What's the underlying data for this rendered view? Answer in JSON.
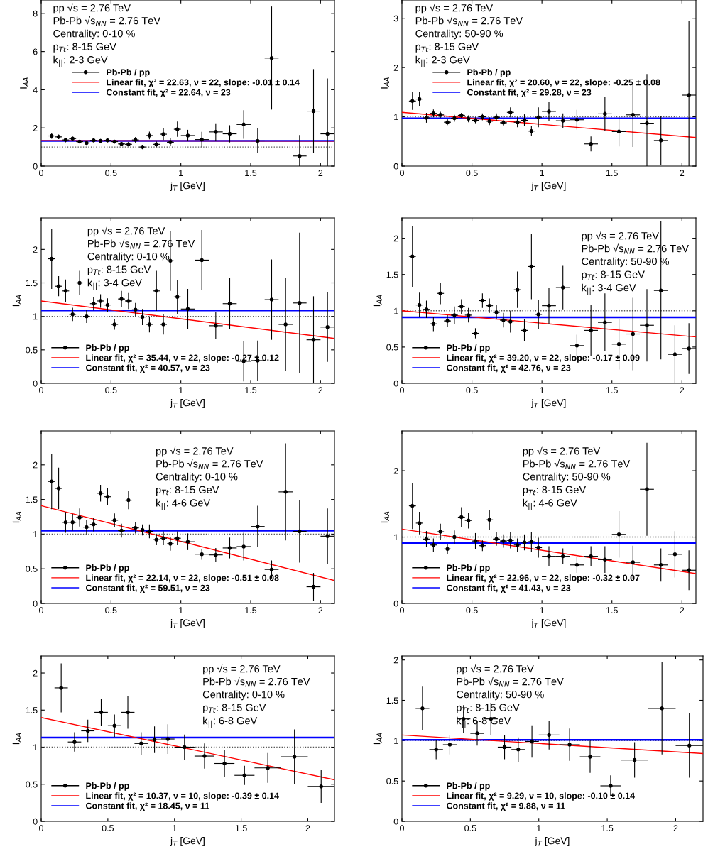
{
  "chart_data": [
    {
      "type": "scatter",
      "xlabel": "j$_{T}$ [GeV]",
      "ylabel": "I$_{AA}$",
      "xlim": [
        0,
        2.1
      ],
      "ylim": [
        0,
        8.7
      ],
      "xticks": [
        0,
        0.5,
        1,
        1.5,
        2
      ],
      "yticks": [
        0,
        2,
        4,
        6,
        8
      ],
      "legend": "center left",
      "annotations": [
        "pp √s = 2.76 TeV",
        "Pb-Pb √s$_{NN}$ = 2.76 TeV",
        "Centrality: 0-10 %",
        "p$_{Tt}$: 8-15 GeV",
        "k$_{||}$: 2-3 GeV"
      ],
      "ref_lines": [
        {
          "axis": "y",
          "value": 1,
          "color": "#555555",
          "line_style": "dotted"
        }
      ],
      "series": [
        {
          "name": "Linear fit, χ² = 22.63, ν = 22, slope: -0.01 ± 0.14",
          "type": "line",
          "color": "#ff0000",
          "x": [
            0,
            2.1
          ],
          "values": [
            1.33,
            1.31
          ]
        },
        {
          "name": "Constant fit, χ² = 22.64, ν = 23",
          "type": "line",
          "color": "#0000ff",
          "x": [
            0,
            2.1
          ],
          "values": [
            1.32,
            1.32
          ]
        },
        {
          "name": "Pb-Pb / pp",
          "marker": "circle",
          "color": "#000000",
          "x": [
            0.075,
            0.125,
            0.175,
            0.225,
            0.275,
            0.325,
            0.375,
            0.425,
            0.475,
            0.525,
            0.575,
            0.625,
            0.675,
            0.725,
            0.775,
            0.825,
            0.875,
            0.925,
            0.975,
            1.05,
            1.15,
            1.25,
            1.35,
            1.45,
            1.55,
            1.65,
            1.85,
            1.95,
            2.05
          ],
          "values": [
            1.58,
            1.53,
            1.37,
            1.44,
            1.28,
            1.21,
            1.35,
            1.32,
            1.35,
            1.28,
            1.16,
            1.14,
            1.37,
            1.0,
            1.6,
            1.14,
            1.67,
            1.25,
            1.93,
            1.6,
            1.39,
            1.79,
            1.69,
            2.18,
            1.32,
            5.66,
            0.53,
            2.88,
            1.69
          ],
          "errors": [
            0.15,
            0.12,
            0.12,
            0.1,
            0.08,
            0.08,
            0.1,
            0.1,
            0.1,
            0.1,
            0.1,
            0.12,
            0.15,
            0.12,
            0.2,
            0.15,
            0.3,
            0.2,
            0.4,
            0.3,
            0.4,
            0.45,
            0.45,
            0.75,
            0.65,
            2.7,
            1.1,
            2.2,
            2.9
          ],
          "xerrors": [
            0.025,
            0.025,
            0.025,
            0.025,
            0.025,
            0.025,
            0.025,
            0.025,
            0.025,
            0.025,
            0.025,
            0.025,
            0.025,
            0.025,
            0.025,
            0.025,
            0.025,
            0.025,
            0.025,
            0.05,
            0.05,
            0.05,
            0.05,
            0.05,
            0.05,
            0.05,
            0.05,
            0.05,
            0.05
          ]
        }
      ]
    },
    {
      "type": "scatter",
      "xlabel": "j$_{T}$ [GeV]",
      "ylabel": "I$_{AA}$",
      "xlim": [
        0,
        2.1
      ],
      "ylim": [
        0,
        3.37
      ],
      "xticks": [
        0,
        0.5,
        1,
        1.5,
        2
      ],
      "yticks": [
        0,
        1,
        2,
        3
      ],
      "legend": "center left",
      "annotations": [
        "pp √s = 2.76 TeV",
        "Pb-Pb √s$_{NN}$ = 2.76 TeV",
        "Centrality: 50-90 %",
        "p$_{Tt}$: 8-15 GeV",
        "k$_{||}$: 2-3 GeV"
      ],
      "ref_lines": [
        {
          "axis": "y",
          "value": 1,
          "color": "#555555",
          "line_style": "dotted"
        }
      ],
      "series": [
        {
          "name": "Linear fit, χ² = 20.60, ν = 22, slope: -0.25 ± 0.08",
          "type": "line",
          "color": "#ff0000",
          "x": [
            0,
            2.1
          ],
          "values": [
            1.09,
            0.58
          ]
        },
        {
          "name": "Constant fit, χ² = 29.28, ν = 23",
          "type": "line",
          "color": "#0000ff",
          "x": [
            0,
            2.1
          ],
          "values": [
            0.97,
            0.97
          ]
        },
        {
          "name": "Pb-Pb / pp",
          "marker": "circle",
          "color": "#000000",
          "x": [
            0.075,
            0.125,
            0.175,
            0.225,
            0.275,
            0.325,
            0.375,
            0.425,
            0.475,
            0.525,
            0.575,
            0.625,
            0.675,
            0.725,
            0.775,
            0.825,
            0.875,
            0.925,
            0.975,
            1.05,
            1.15,
            1.25,
            1.35,
            1.45,
            1.55,
            1.65,
            1.75,
            1.85,
            2.05
          ],
          "values": [
            1.32,
            1.36,
            0.98,
            1.07,
            1.04,
            0.89,
            0.97,
            1.03,
            0.96,
            0.93,
            1.0,
            0.91,
            0.99,
            0.88,
            1.09,
            0.89,
            0.93,
            0.71,
            0.99,
            1.11,
            0.92,
            0.94,
            0.45,
            1.06,
            0.7,
            1.04,
            0.87,
            0.52,
            1.44
          ],
          "errors": [
            0.18,
            0.15,
            0.1,
            0.08,
            0.06,
            0.06,
            0.07,
            0.05,
            0.07,
            0.06,
            0.07,
            0.08,
            0.08,
            0.06,
            0.1,
            0.1,
            0.12,
            0.1,
            0.2,
            0.2,
            0.15,
            0.2,
            0.15,
            0.35,
            0.3,
            0.65,
            1.0,
            0.5,
            1.5
          ],
          "xerrors": [
            0.025,
            0.025,
            0.025,
            0.025,
            0.025,
            0.025,
            0.025,
            0.025,
            0.025,
            0.025,
            0.025,
            0.025,
            0.025,
            0.025,
            0.025,
            0.025,
            0.025,
            0.025,
            0.025,
            0.05,
            0.05,
            0.05,
            0.05,
            0.05,
            0.05,
            0.05,
            0.05,
            0.05,
            0.05
          ]
        }
      ]
    },
    {
      "type": "scatter",
      "xlabel": "j$_{T}$ [GeV]",
      "ylabel": "I$_{AA}$",
      "xlim": [
        0,
        2.1
      ],
      "ylim": [
        0,
        2.47
      ],
      "xticks": [
        0,
        0.5,
        1,
        1.5,
        2
      ],
      "yticks": [
        0,
        0.5,
        1,
        1.5,
        2
      ],
      "legend": "lower left",
      "annotations": [
        "pp √s = 2.76 TeV",
        "Pb-Pb √s$_{NN}$ = 2.76 TeV",
        "Centrality: 0-10 %",
        "p$_{Tt}$: 8-15 GeV",
        "k$_{||}$: 3-4 GeV"
      ],
      "ref_lines": [
        {
          "axis": "y",
          "value": 1,
          "color": "#555555",
          "line_style": "dotted"
        }
      ],
      "series": [
        {
          "name": "Linear fit, χ² = 35.44, ν = 22, slope: -0.27 ± 0.12",
          "type": "line",
          "color": "#ff0000",
          "x": [
            0,
            2.1
          ],
          "values": [
            1.23,
            0.67
          ]
        },
        {
          "name": "Constant fit, χ² = 40.57, ν = 23",
          "type": "line",
          "color": "#0000ff",
          "x": [
            0,
            2.1
          ],
          "values": [
            1.09,
            1.09
          ]
        },
        {
          "name": "Pb-Pb / pp",
          "marker": "circle",
          "color": "#000000",
          "x": [
            0.075,
            0.125,
            0.175,
            0.225,
            0.275,
            0.325,
            0.375,
            0.425,
            0.475,
            0.525,
            0.575,
            0.625,
            0.675,
            0.725,
            0.775,
            0.825,
            0.875,
            0.925,
            0.975,
            1.05,
            1.15,
            1.25,
            1.35,
            1.45,
            1.55,
            1.65,
            1.75,
            1.85,
            1.95,
            2.05
          ],
          "values": [
            1.86,
            1.45,
            1.38,
            1.03,
            1.5,
            1.0,
            1.19,
            1.23,
            1.17,
            0.88,
            1.26,
            1.23,
            1.1,
            0.99,
            0.88,
            1.38,
            0.88,
            1.83,
            1.29,
            1.11,
            1.84,
            0.86,
            1.19,
            0.33,
            0.34,
            1.25,
            0.88,
            1.2,
            0.65,
            0.84
          ],
          "errors": [
            0.45,
            0.15,
            0.17,
            0.1,
            0.18,
            0.1,
            0.1,
            0.1,
            0.1,
            0.08,
            0.12,
            0.12,
            0.1,
            0.12,
            0.12,
            0.3,
            0.15,
            0.45,
            0.25,
            0.3,
            0.45,
            0.2,
            0.38,
            0.3,
            0.3,
            0.6,
            0.7,
            1.05,
            0.65,
            0.52
          ],
          "xerrors": [
            0.025,
            0.025,
            0.025,
            0.025,
            0.025,
            0.025,
            0.025,
            0.025,
            0.025,
            0.025,
            0.025,
            0.025,
            0.025,
            0.025,
            0.025,
            0.025,
            0.025,
            0.025,
            0.025,
            0.05,
            0.05,
            0.05,
            0.05,
            0.05,
            0.05,
            0.05,
            0.05,
            0.05,
            0.05,
            0.05
          ]
        }
      ]
    },
    {
      "type": "scatter",
      "xlabel": "j$_{T}$ [GeV]",
      "ylabel": "I$_{AA}$",
      "xlim": [
        0,
        2.1
      ],
      "ylim": [
        0,
        2.28
      ],
      "xticks": [
        0,
        0.5,
        1,
        1.5,
        2
      ],
      "yticks": [
        0,
        0.5,
        1,
        1.5,
        2
      ],
      "legend": "lower left",
      "annotations": [
        "pp √s = 2.76 TeV",
        "Pb-Pb √s$_{NN}$ = 2.76 TeV",
        "Centrality: 50-90 %",
        "p$_{Tt}$: 8-15 GeV",
        "k$_{||}$: 3-4 GeV"
      ],
      "ref_lines": [
        {
          "axis": "y",
          "value": 1,
          "color": "#555555",
          "line_style": "dotted"
        }
      ],
      "series": [
        {
          "name": "Linear fit, χ² = 39.20, ν = 22, slope: -0.17 ± 0.09",
          "type": "line",
          "color": "#ff0000",
          "x": [
            0,
            2.1
          ],
          "values": [
            1.0,
            0.64
          ]
        },
        {
          "name": "Constant fit, χ² = 42.76, ν = 23",
          "type": "line",
          "color": "#0000ff",
          "x": [
            0,
            2.1
          ],
          "values": [
            0.91,
            0.91
          ]
        },
        {
          "name": "Pb-Pb / pp",
          "marker": "circle",
          "color": "#000000",
          "x": [
            0.075,
            0.125,
            0.175,
            0.225,
            0.275,
            0.325,
            0.375,
            0.425,
            0.475,
            0.525,
            0.575,
            0.625,
            0.675,
            0.725,
            0.775,
            0.825,
            0.875,
            0.925,
            0.975,
            1.05,
            1.15,
            1.25,
            1.35,
            1.45,
            1.55,
            1.65,
            1.75,
            1.85,
            1.95,
            2.05
          ],
          "values": [
            1.75,
            1.08,
            1.02,
            0.82,
            1.24,
            0.86,
            0.94,
            1.06,
            0.94,
            0.69,
            1.14,
            1.07,
            0.98,
            0.87,
            0.85,
            1.29,
            0.73,
            1.61,
            0.95,
            1.07,
            1.32,
            0.52,
            0.73,
            0.84,
            0.54,
            0.68,
            0.8,
            1.28,
            0.4,
            0.48
          ],
          "errors": [
            0.42,
            0.17,
            0.12,
            0.1,
            0.15,
            0.08,
            0.12,
            0.1,
            0.1,
            0.07,
            0.1,
            0.1,
            0.1,
            0.1,
            0.15,
            0.25,
            0.15,
            0.45,
            0.2,
            0.25,
            0.3,
            0.15,
            0.35,
            0.4,
            0.35,
            0.5,
            0.5,
            0.95,
            0.4,
            0.35
          ],
          "xerrors": [
            0.025,
            0.025,
            0.025,
            0.025,
            0.025,
            0.025,
            0.025,
            0.025,
            0.025,
            0.025,
            0.025,
            0.025,
            0.025,
            0.025,
            0.025,
            0.025,
            0.025,
            0.025,
            0.025,
            0.05,
            0.05,
            0.05,
            0.05,
            0.05,
            0.05,
            0.05,
            0.05,
            0.05,
            0.05,
            0.05
          ]
        }
      ]
    },
    {
      "type": "scatter",
      "xlabel": "j$_{T}$ [GeV]",
      "ylabel": "I$_{AA}$",
      "xlim": [
        0,
        2.1
      ],
      "ylim": [
        0,
        2.49
      ],
      "xticks": [
        0,
        0.5,
        1,
        1.5,
        2
      ],
      "yticks": [
        0,
        0.5,
        1,
        1.5,
        2
      ],
      "legend": "lower left",
      "annotations": [
        "pp √s = 2.76 TeV",
        "Pb-Pb √s$_{NN}$ = 2.76 TeV",
        "Centrality: 0-10 %",
        "p$_{Tt}$: 8-15 GeV",
        "k$_{||}$: 4-6 GeV"
      ],
      "ref_lines": [
        {
          "axis": "y",
          "value": 1,
          "color": "#555555",
          "line_style": "dotted"
        }
      ],
      "series": [
        {
          "name": "Linear fit, χ² = 22.14, ν = 22, slope: -0.51 ± 0.08",
          "type": "line",
          "color": "#ff0000",
          "x": [
            0,
            2.1
          ],
          "values": [
            1.41,
            0.33
          ]
        },
        {
          "name": "Constant fit, χ² = 59.51, ν = 23",
          "type": "line",
          "color": "#0000ff",
          "x": [
            0,
            2.1
          ],
          "values": [
            1.05,
            1.05
          ]
        },
        {
          "name": "Pb-Pb / pp",
          "marker": "circle",
          "color": "#000000",
          "x": [
            0.075,
            0.125,
            0.175,
            0.225,
            0.275,
            0.325,
            0.375,
            0.425,
            0.475,
            0.525,
            0.575,
            0.625,
            0.675,
            0.725,
            0.775,
            0.825,
            0.875,
            0.925,
            0.975,
            1.05,
            1.15,
            1.25,
            1.35,
            1.45,
            1.55,
            1.65,
            1.75,
            1.85,
            1.95,
            2.05
          ],
          "values": [
            1.76,
            1.66,
            1.17,
            1.17,
            1.24,
            1.1,
            1.14,
            1.59,
            1.54,
            1.2,
            1.05,
            1.49,
            1.09,
            1.06,
            1.04,
            0.92,
            0.94,
            0.86,
            0.94,
            0.89,
            0.71,
            0.7,
            0.8,
            0.82,
            1.11,
            0.49,
            1.61,
            1.04,
            0.24,
            0.97
          ],
          "errors": [
            0.4,
            0.3,
            0.15,
            0.12,
            0.13,
            0.1,
            0.1,
            0.12,
            0.12,
            0.1,
            0.1,
            0.13,
            0.08,
            0.08,
            0.1,
            0.08,
            0.1,
            0.1,
            0.1,
            0.12,
            0.08,
            0.1,
            0.15,
            0.2,
            0.3,
            0.13,
            0.7,
            0.45,
            0.2,
            0.4
          ],
          "xerrors": [
            0.025,
            0.025,
            0.025,
            0.025,
            0.025,
            0.025,
            0.025,
            0.025,
            0.025,
            0.025,
            0.025,
            0.025,
            0.025,
            0.025,
            0.025,
            0.025,
            0.025,
            0.025,
            0.025,
            0.05,
            0.05,
            0.05,
            0.05,
            0.05,
            0.05,
            0.05,
            0.05,
            0.05,
            0.05,
            0.05
          ]
        }
      ]
    },
    {
      "type": "scatter",
      "xlabel": "j$_{T}$ [GeV]",
      "ylabel": "I$_{AA}$",
      "xlim": [
        0,
        2.1
      ],
      "ylim": [
        0,
        2.6
      ],
      "xticks": [
        0,
        0.5,
        1,
        1.5,
        2
      ],
      "yticks": [
        0,
        1,
        2
      ],
      "legend": "lower left",
      "annotations": [
        "pp √s = 2.76 TeV",
        "Pb-Pb √s$_{NN}$ = 2.76 TeV",
        "Centrality: 50-90 %",
        "p$_{Tt}$: 8-15 GeV",
        "k$_{||}$: 4-6 GeV"
      ],
      "ref_lines": [
        {
          "axis": "y",
          "value": 1,
          "color": "#555555",
          "line_style": "dotted"
        }
      ],
      "series": [
        {
          "name": "Linear fit, χ² = 22.96, ν = 22, slope: -0.32 ± 0.07",
          "type": "line",
          "color": "#ff0000",
          "x": [
            0,
            2.1
          ],
          "values": [
            1.12,
            0.45
          ]
        },
        {
          "name": "Constant fit, χ² = 41.43, ν = 23",
          "type": "line",
          "color": "#0000ff",
          "x": [
            0,
            2.1
          ],
          "values": [
            0.91,
            0.91
          ]
        },
        {
          "name": "Pb-Pb / pp",
          "marker": "circle",
          "color": "#000000",
          "x": [
            0.075,
            0.125,
            0.175,
            0.225,
            0.275,
            0.325,
            0.375,
            0.425,
            0.475,
            0.525,
            0.575,
            0.625,
            0.675,
            0.725,
            0.775,
            0.825,
            0.875,
            0.925,
            0.975,
            1.05,
            1.15,
            1.25,
            1.35,
            1.45,
            1.55,
            1.65,
            1.75,
            1.85,
            1.95,
            2.05
          ],
          "values": [
            1.47,
            1.21,
            0.97,
            0.88,
            1.08,
            0.82,
            1.0,
            1.3,
            1.25,
            0.94,
            0.87,
            1.26,
            0.97,
            0.94,
            0.95,
            0.88,
            0.92,
            0.93,
            0.84,
            0.71,
            0.71,
            0.58,
            0.71,
            0.66,
            1.04,
            0.62,
            1.72,
            0.58,
            0.74,
            0.5
          ],
          "errors": [
            0.35,
            0.17,
            0.12,
            0.1,
            0.12,
            0.08,
            0.1,
            0.15,
            0.12,
            0.12,
            0.08,
            0.15,
            0.1,
            0.1,
            0.12,
            0.1,
            0.12,
            0.15,
            0.15,
            0.15,
            0.12,
            0.12,
            0.15,
            0.2,
            0.35,
            0.25,
            0.7,
            0.25,
            0.35,
            0.3
          ],
          "xerrors": [
            0.025,
            0.025,
            0.025,
            0.025,
            0.025,
            0.025,
            0.025,
            0.025,
            0.025,
            0.025,
            0.025,
            0.025,
            0.025,
            0.025,
            0.025,
            0.025,
            0.025,
            0.025,
            0.025,
            0.05,
            0.05,
            0.05,
            0.05,
            0.05,
            0.05,
            0.05,
            0.05,
            0.05,
            0.05,
            0.05
          ]
        }
      ]
    },
    {
      "type": "scatter",
      "xlabel": "j$_{T}$ [GeV]",
      "ylabel": "I$_{AA}$",
      "xlim": [
        0,
        2.2
      ],
      "ylim": [
        0,
        2.23
      ],
      "xticks": [
        0,
        0.5,
        1,
        1.5,
        2
      ],
      "yticks": [
        0,
        0.5,
        1,
        1.5,
        2
      ],
      "legend": "lower left",
      "annotations": [
        "pp √s = 2.76 TeV",
        "Pb-Pb √s$_{NN}$ = 2.76 TeV",
        "Centrality: 0-10 %",
        "p$_{Tt}$: 8-15 GeV",
        "k$_{||}$: 6-8 GeV"
      ],
      "ref_lines": [
        {
          "axis": "y",
          "value": 1,
          "color": "#555555",
          "line_style": "dotted"
        }
      ],
      "series": [
        {
          "name": "Linear fit, χ² = 10.37, ν = 10, slope: -0.39 ± 0.14",
          "type": "line",
          "color": "#ff0000",
          "x": [
            0,
            2.2
          ],
          "values": [
            1.4,
            0.56
          ]
        },
        {
          "name": "Constant fit, χ² = 18.45, ν = 11",
          "type": "line",
          "color": "#0000ff",
          "x": [
            0,
            2.2
          ],
          "values": [
            1.13,
            1.13
          ]
        },
        {
          "name": "Pb-Pb / pp",
          "marker": "circle",
          "color": "#000000",
          "x": [
            0.15,
            0.25,
            0.35,
            0.45,
            0.55,
            0.65,
            0.75,
            0.85,
            0.95,
            1.075,
            1.225,
            1.375,
            1.525,
            1.7,
            1.9,
            2.1
          ],
          "values": [
            1.8,
            1.07,
            1.22,
            1.47,
            1.29,
            1.47,
            1.05,
            1.1,
            1.11,
            1.0,
            0.88,
            0.78,
            0.62,
            0.72,
            0.87,
            0.47
          ],
          "errors": [
            0.33,
            0.13,
            0.15,
            0.18,
            0.15,
            0.22,
            0.15,
            0.18,
            0.2,
            0.17,
            0.17,
            0.18,
            0.13,
            0.2,
            0.37,
            0.22
          ],
          "xerrors": [
            0.05,
            0.05,
            0.05,
            0.05,
            0.05,
            0.05,
            0.05,
            0.05,
            0.05,
            0.075,
            0.075,
            0.075,
            0.075,
            0.1,
            0.1,
            0.1
          ]
        }
      ]
    },
    {
      "type": "scatter",
      "xlabel": "j$_{T}$ [GeV]",
      "ylabel": "I$_{AA}$",
      "xlim": [
        0,
        2.2
      ],
      "ylim": [
        0,
        2.05
      ],
      "xticks": [
        0,
        0.5,
        1,
        1.5,
        2
      ],
      "yticks": [
        0,
        0.5,
        1,
        1.5,
        2
      ],
      "legend": "lower left",
      "annotations": [
        "pp √s = 2.76 TeV",
        "Pb-Pb √s$_{NN}$ = 2.76 TeV",
        "Centrality: 50-90 %",
        "p$_{Tt}$: 8-15 GeV",
        "k$_{||}$: 6-8 GeV"
      ],
      "ref_lines": [
        {
          "axis": "y",
          "value": 1,
          "color": "#555555",
          "line_style": "dotted"
        }
      ],
      "series": [
        {
          "name": "Linear fit, χ² = 9.29, ν = 10, slope: -0.10 ± 0.14",
          "type": "line",
          "color": "#ff0000",
          "x": [
            0,
            2.2
          ],
          "values": [
            1.07,
            0.84
          ]
        },
        {
          "name": "Constant fit, χ² = 9.88, ν = 11",
          "type": "line",
          "color": "#0000ff",
          "x": [
            0,
            2.2
          ],
          "values": [
            1.01,
            1.01
          ]
        },
        {
          "name": "Pb-Pb / pp",
          "marker": "circle",
          "color": "#000000",
          "x": [
            0.15,
            0.25,
            0.35,
            0.45,
            0.55,
            0.65,
            0.75,
            0.85,
            0.95,
            1.075,
            1.225,
            1.375,
            1.525,
            1.7,
            1.9,
            2.1
          ],
          "values": [
            1.4,
            0.89,
            0.95,
            1.27,
            1.09,
            1.27,
            0.92,
            0.89,
            0.99,
            1.07,
            0.95,
            0.8,
            0.44,
            0.76,
            1.4,
            0.94
          ],
          "errors": [
            0.27,
            0.12,
            0.12,
            0.17,
            0.15,
            0.2,
            0.15,
            0.15,
            0.2,
            0.18,
            0.2,
            0.2,
            0.13,
            0.22,
            0.57,
            0.4
          ],
          "xerrors": [
            0.05,
            0.05,
            0.05,
            0.05,
            0.05,
            0.05,
            0.05,
            0.05,
            0.05,
            0.075,
            0.075,
            0.075,
            0.075,
            0.1,
            0.1,
            0.1
          ]
        }
      ]
    }
  ]
}
